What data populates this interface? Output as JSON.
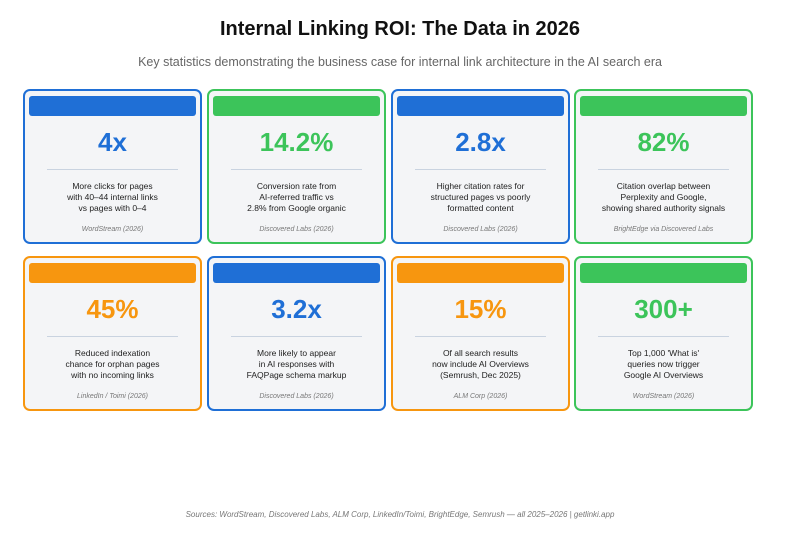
{
  "header": {
    "title": "Internal Linking ROI: The Data in 2026",
    "subtitle": "Key statistics demonstrating the business case for internal link architecture in the AI search era"
  },
  "cards": [
    {
      "value": "4x",
      "color": "#1f6fd6",
      "lines": [
        "More clicks for pages",
        "with 40–44 internal links",
        "vs pages with 0–4"
      ],
      "source": "WordStream (2026)"
    },
    {
      "value": "14.2%",
      "color": "#3cc45a",
      "lines": [
        "Conversion rate from",
        "AI-referred traffic vs",
        "2.8% from Google organic"
      ],
      "source": "Discovered Labs (2026)"
    },
    {
      "value": "2.8x",
      "color": "#1f6fd6",
      "lines": [
        "Higher citation rates for",
        "structured pages vs poorly",
        "formatted content"
      ],
      "source": "Discovered Labs (2026)"
    },
    {
      "value": "82%",
      "color": "#3cc45a",
      "lines": [
        "Citation overlap between",
        "Perplexity and Google,",
        "showing shared authority signals"
      ],
      "source": "BrightEdge via Discovered Labs"
    },
    {
      "value": "45%",
      "color": "#f7960f",
      "lines": [
        "Reduced indexation",
        "chance for orphan pages",
        "with no incoming links"
      ],
      "source": "LinkedIn / Toimi (2026)"
    },
    {
      "value": "3.2x",
      "color": "#1f6fd6",
      "lines": [
        "More likely to appear",
        "in AI responses with",
        "FAQPage schema markup"
      ],
      "source": "Discovered Labs (2026)"
    },
    {
      "value": "15%",
      "color": "#f7960f",
      "lines": [
        "Of all search results",
        "now include AI Overviews",
        "(Semrush, Dec 2025)"
      ],
      "source": "ALM Corp (2026)"
    },
    {
      "value": "300+",
      "color": "#3cc45a",
      "lines": [
        "Top 1,000 'What is'",
        "queries now trigger",
        "Google AI Overviews"
      ],
      "source": "WordStream (2026)"
    }
  ],
  "footer": "Sources: WordStream, Discovered Labs, ALM Corp, LinkedIn/Toimi, BrightEdge, Semrush — all 2025–2026  |  getlinki.app"
}
